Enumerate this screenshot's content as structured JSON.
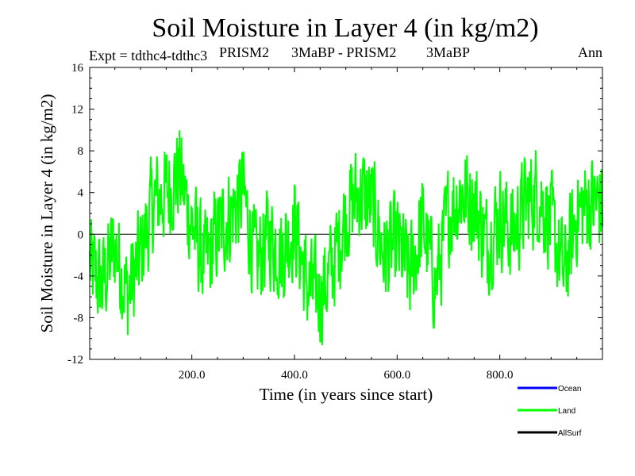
{
  "chart_data": {
    "type": "line",
    "title": "Soil Moisture in Layer 4 (in kg/m2)",
    "subtitle_left": "Expt = tdthc4-tdthc3",
    "subtitle_mid1": "PRISM2",
    "subtitle_mid2": "3MaBP - PRISM2",
    "subtitle_mid3": "3MaBP",
    "subtitle_right": "Ann",
    "xlabel": "Time (in years since start)",
    "ylabel": "Soil Moisture in Layer 4 (in kg/m2)",
    "xlim": [
      1,
      1000
    ],
    "ylim": [
      -12,
      16
    ],
    "xticks": [
      200,
      400,
      600,
      800
    ],
    "xtick_labels": [
      "200.0",
      "400.0",
      "600.0",
      "800.0"
    ],
    "yticks": [
      -12,
      -8,
      -4,
      0,
      4,
      8,
      12,
      16
    ],
    "ytick_labels": [
      "-12",
      "-8",
      "-4",
      "0",
      "4",
      "8",
      "12",
      "16"
    ],
    "zero_line": 0,
    "series": [
      {
        "name": "Ocean",
        "color": "#0000ff",
        "values": []
      },
      {
        "name": "Land",
        "color": "#00ff00",
        "x": [
          1,
          25,
          50,
          75,
          100,
          125,
          150,
          175,
          200,
          225,
          250,
          275,
          300,
          325,
          350,
          375,
          400,
          425,
          450,
          475,
          500,
          525,
          550,
          575,
          600,
          625,
          650,
          675,
          700,
          725,
          750,
          775,
          800,
          825,
          850,
          875,
          900,
          925,
          950,
          975,
          1000
        ],
        "values": [
          -3,
          -5,
          -1,
          -6,
          -2,
          3,
          4,
          6,
          1,
          -3,
          0,
          2,
          4,
          -3,
          0,
          -2,
          1,
          -5,
          -6,
          -3,
          2,
          4,
          3,
          -2,
          -1,
          -4,
          1,
          -5,
          2,
          4,
          3,
          -1,
          2,
          0,
          3,
          4,
          1,
          -4,
          2,
          3,
          3
        ]
      },
      {
        "name": "AllSurf",
        "color": "#000000",
        "values": []
      }
    ],
    "legend_position": "bottom-right"
  }
}
